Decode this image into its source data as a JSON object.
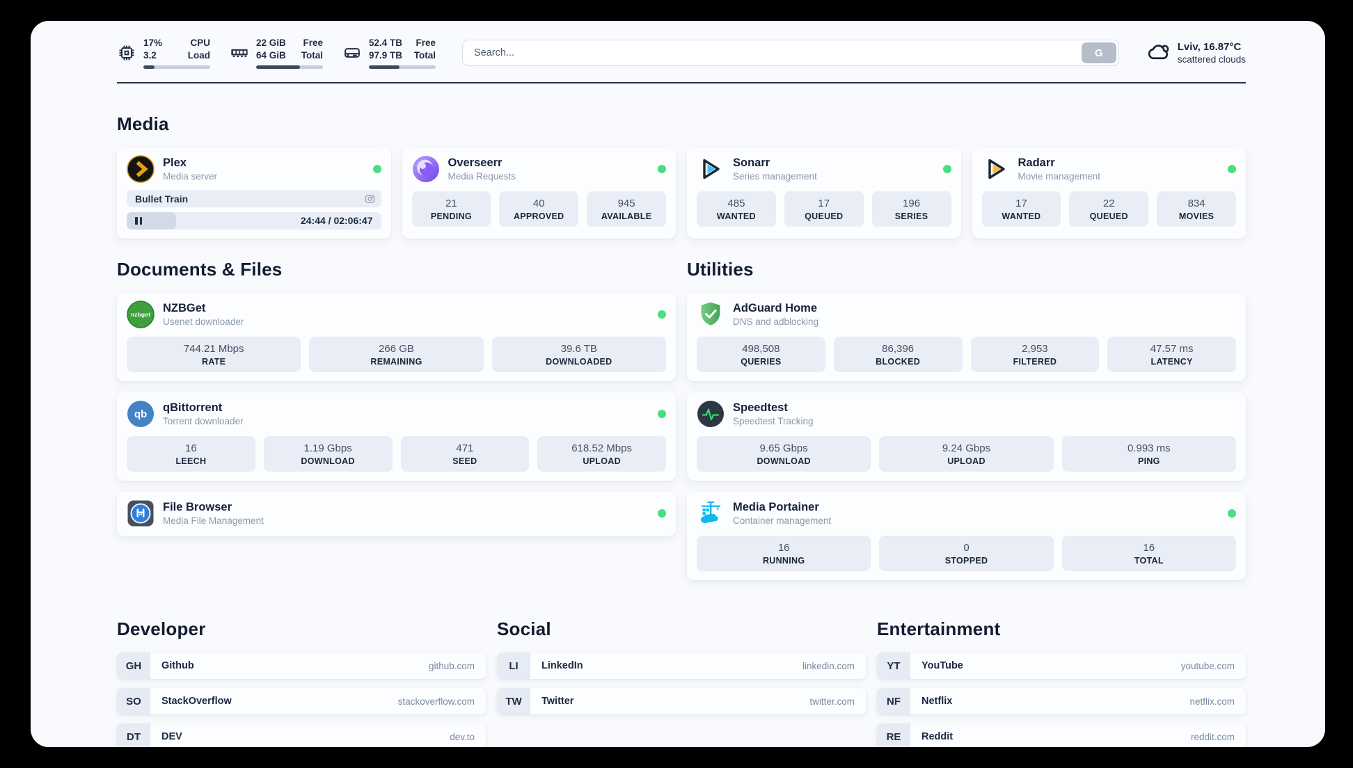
{
  "header": {
    "stats": [
      {
        "id": "cpu",
        "value_top": "17%",
        "value_bottom": "3.2",
        "label_top": "CPU",
        "label_bottom": "Load",
        "progress_pct": 17
      },
      {
        "id": "memory",
        "value_top": "22 GiB",
        "value_bottom": "64 GiB",
        "label_top": "Free",
        "label_bottom": "Total",
        "progress_pct": 66
      },
      {
        "id": "disk",
        "value_top": "52.4 TB",
        "value_bottom": "97.9 TB",
        "label_top": "Free",
        "label_bottom": "Total",
        "progress_pct": 46
      }
    ],
    "search": {
      "placeholder": "Search...",
      "button_label": "G"
    },
    "weather": {
      "location_temp": "Lviv, 16.87°C",
      "condition": "scattered clouds"
    }
  },
  "media": {
    "title": "Media",
    "plex": {
      "name": "Plex",
      "description": "Media server",
      "online": true,
      "now_playing": "Bullet Train",
      "time_display": "24:44 / 02:06:47",
      "progress_pct": 19.5
    },
    "overseerr": {
      "name": "Overseerr",
      "description": "Media Requests",
      "online": true,
      "stats": [
        {
          "value": "21",
          "label": "PENDING"
        },
        {
          "value": "40",
          "label": "APPROVED"
        },
        {
          "value": "945",
          "label": "AVAILABLE"
        }
      ]
    },
    "sonarr": {
      "name": "Sonarr",
      "description": "Series management",
      "online": true,
      "stats": [
        {
          "value": "485",
          "label": "WANTED"
        },
        {
          "value": "17",
          "label": "QUEUED"
        },
        {
          "value": "196",
          "label": "SERIES"
        }
      ]
    },
    "radarr": {
      "name": "Radarr",
      "description": "Movie management",
      "online": true,
      "stats": [
        {
          "value": "17",
          "label": "WANTED"
        },
        {
          "value": "22",
          "label": "QUEUED"
        },
        {
          "value": "834",
          "label": "MOVIES"
        }
      ]
    }
  },
  "documents": {
    "title": "Documents & Files",
    "nzbget": {
      "name": "NZBGet",
      "description": "Usenet downloader",
      "online": true,
      "logo_text": "nzbget",
      "stats": [
        {
          "value": "744.21 Mbps",
          "label": "RATE"
        },
        {
          "value": "266 GB",
          "label": "REMAINING"
        },
        {
          "value": "39.6 TB",
          "label": "DOWNLOADED"
        }
      ]
    },
    "qbittorrent": {
      "name": "qBittorrent",
      "description": "Torrent downloader",
      "online": true,
      "logo_text": "qb",
      "stats": [
        {
          "value": "16",
          "label": "LEECH"
        },
        {
          "value": "1.19 Gbps",
          "label": "DOWNLOAD"
        },
        {
          "value": "471",
          "label": "SEED"
        },
        {
          "value": "618.52 Mbps",
          "label": "UPLOAD"
        }
      ]
    },
    "filebrowser": {
      "name": "File Browser",
      "description": "Media File Management",
      "online": true
    }
  },
  "utilities": {
    "title": "Utilities",
    "adguard": {
      "name": "AdGuard Home",
      "description": "DNS and adblocking",
      "stats": [
        {
          "value": "498,508",
          "label": "QUERIES"
        },
        {
          "value": "86,396",
          "label": "BLOCKED"
        },
        {
          "value": "2,953",
          "label": "FILTERED"
        },
        {
          "value": "47.57 ms",
          "label": "LATENCY"
        }
      ]
    },
    "speedtest": {
      "name": "Speedtest",
      "description": "Speedtest Tracking",
      "stats": [
        {
          "value": "9.65 Gbps",
          "label": "DOWNLOAD"
        },
        {
          "value": "9.24 Gbps",
          "label": "UPLOAD"
        },
        {
          "value": "0.993 ms",
          "label": "PING"
        }
      ]
    },
    "portainer": {
      "name": "Media Portainer",
      "description": "Container management",
      "online": true,
      "stats": [
        {
          "value": "16",
          "label": "RUNNING"
        },
        {
          "value": "0",
          "label": "STOPPED"
        },
        {
          "value": "16",
          "label": "TOTAL"
        }
      ]
    }
  },
  "bookmarks": {
    "developer": {
      "title": "Developer",
      "items": [
        {
          "abbr": "GH",
          "name": "Github",
          "url": "github.com"
        },
        {
          "abbr": "SO",
          "name": "StackOverflow",
          "url": "stackoverflow.com"
        },
        {
          "abbr": "DT",
          "name": "DEV",
          "url": "dev.to"
        }
      ]
    },
    "social": {
      "title": "Social",
      "items": [
        {
          "abbr": "LI",
          "name": "LinkedIn",
          "url": "linkedin.com"
        },
        {
          "abbr": "TW",
          "name": "Twitter",
          "url": "twitter.com"
        }
      ]
    },
    "entertainment": {
      "title": "Entertainment",
      "items": [
        {
          "abbr": "YT",
          "name": "YouTube",
          "url": "youtube.com"
        },
        {
          "abbr": "NF",
          "name": "Netflix",
          "url": "netflix.com"
        },
        {
          "abbr": "RE",
          "name": "Reddit",
          "url": "reddit.com"
        }
      ]
    }
  },
  "colors": {
    "status_online": "#4ade80",
    "plex_amber": "#e5a00d",
    "sonarr_cyan": "#35c5f4",
    "radarr_orange": "#ffb937",
    "nzbget_green": "#3f9f3c",
    "qbittorrent_blue": "#4482c6",
    "adguard_green": "#5fbf6b",
    "speedtest_pulse": "#2ee06f",
    "portainer_blue": "#0db9f0",
    "progress_fill": "#3e4a60"
  }
}
